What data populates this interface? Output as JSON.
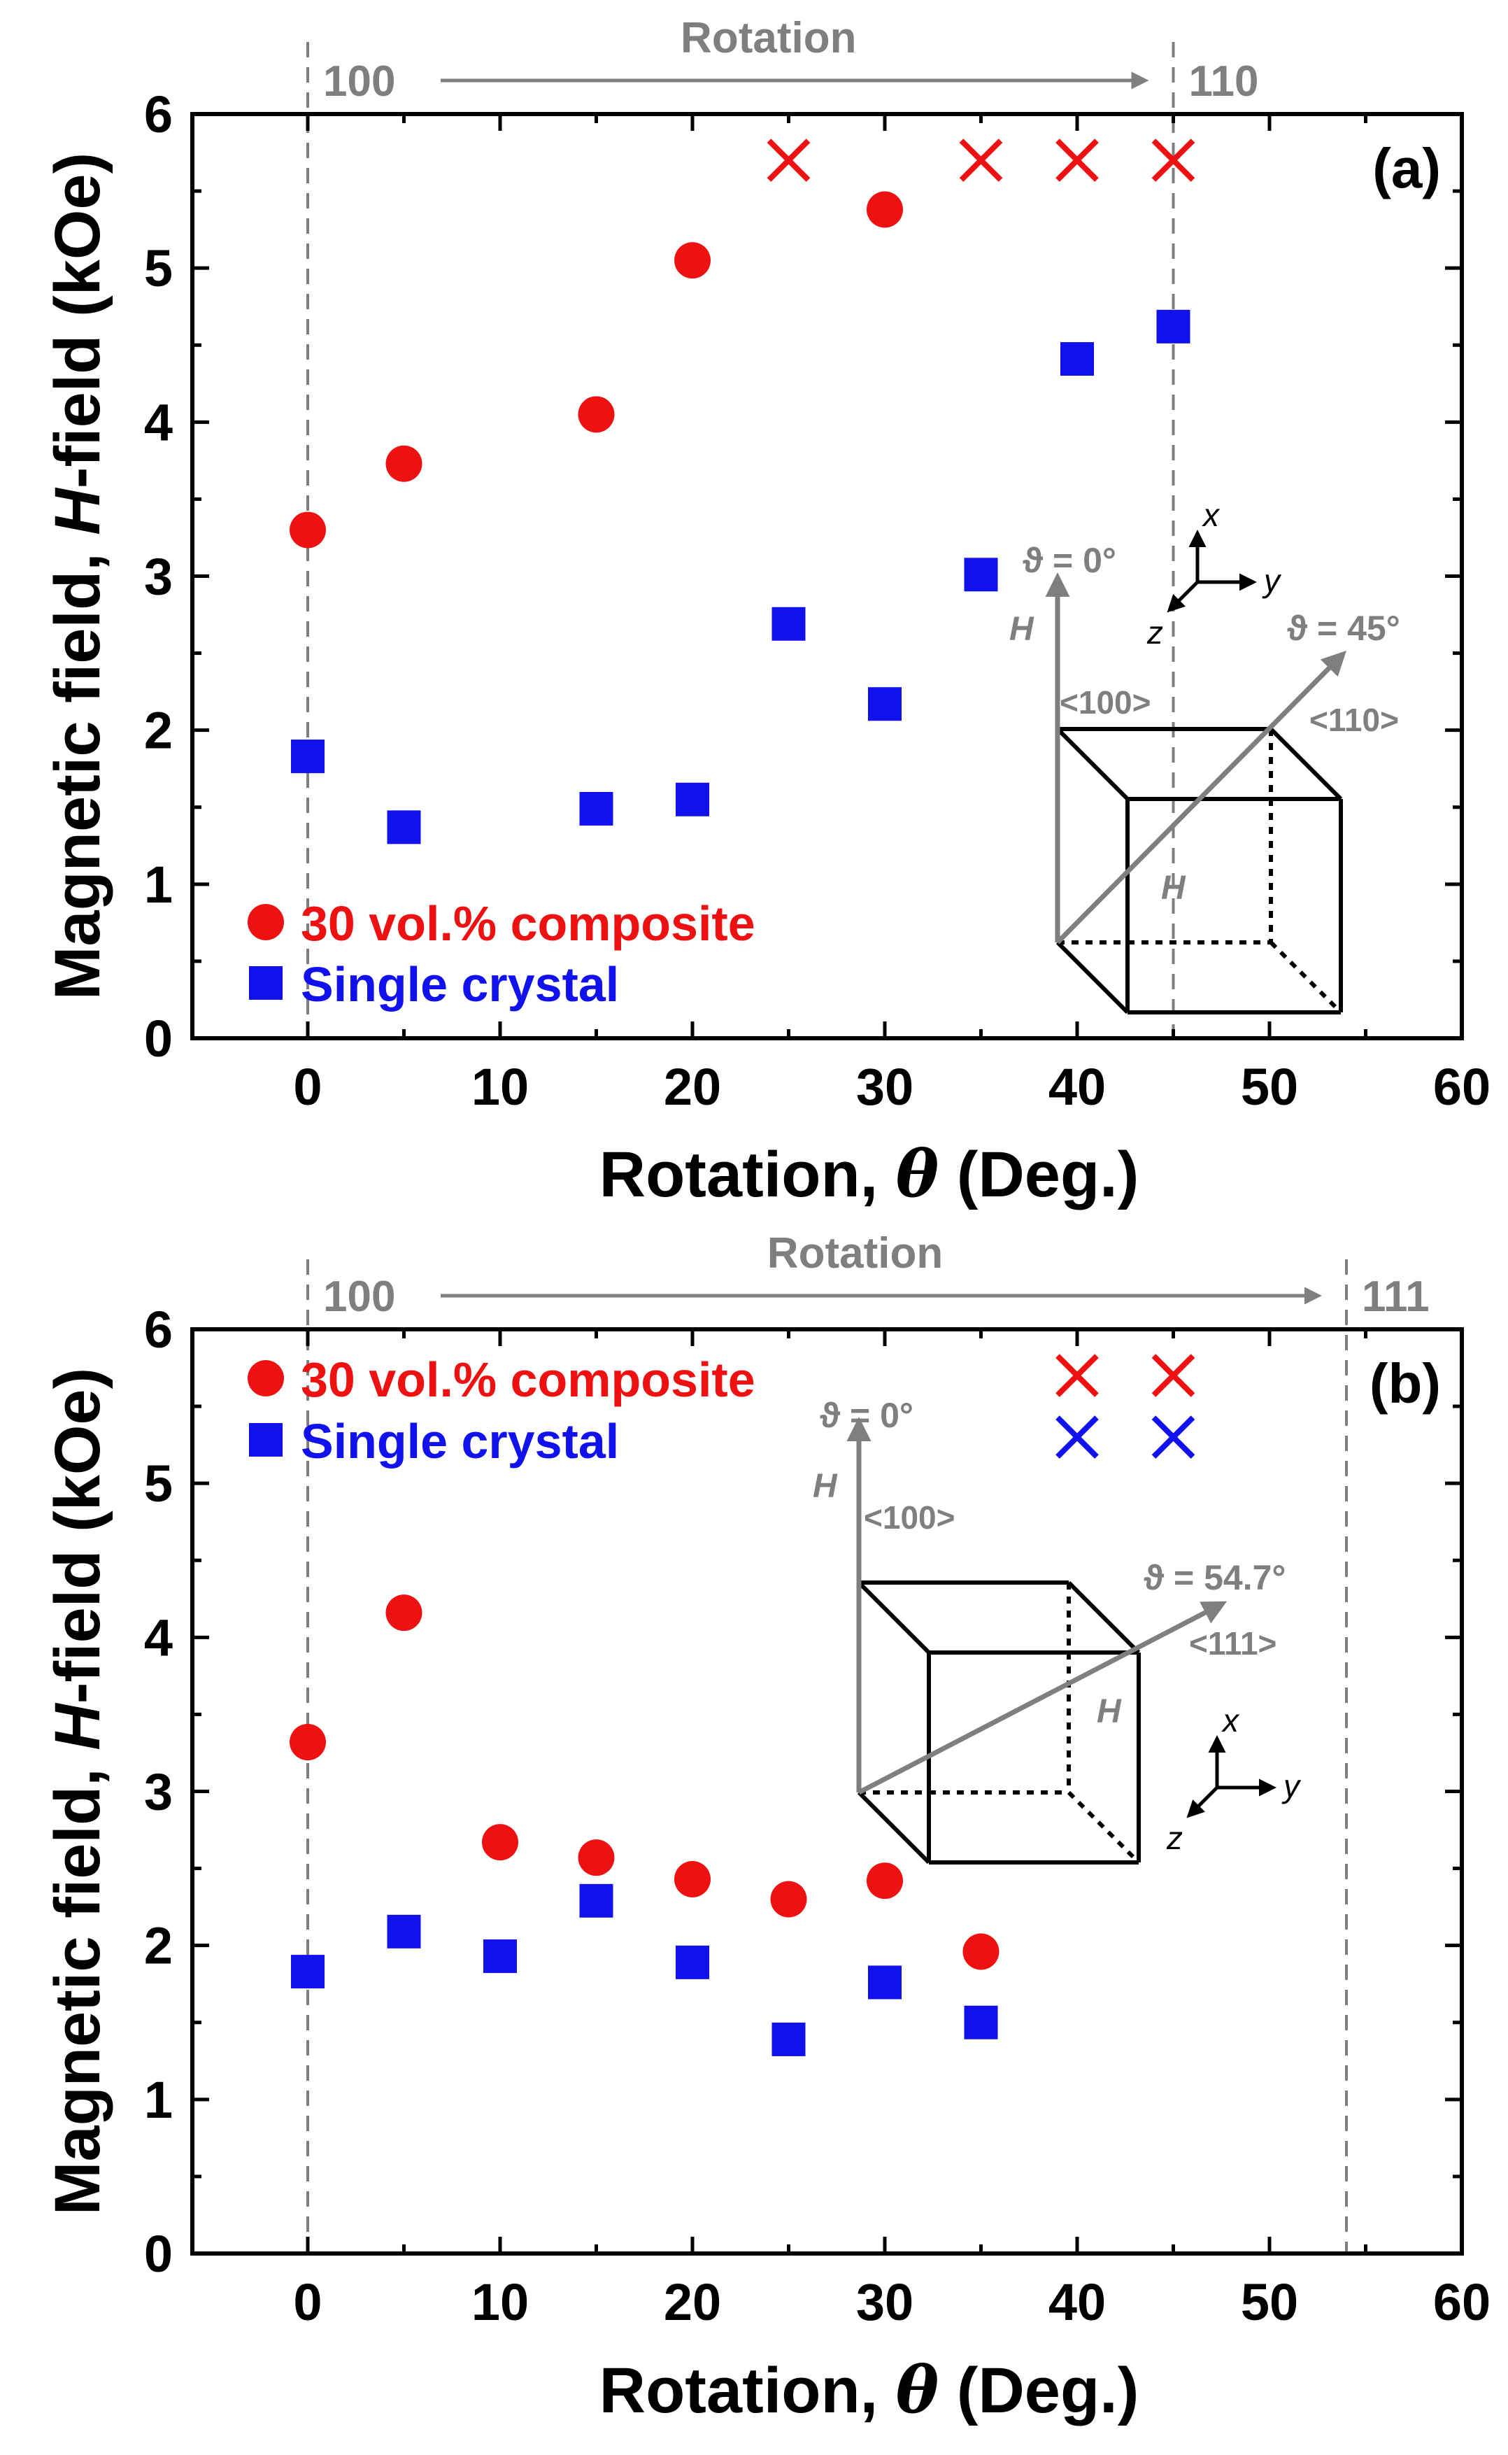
{
  "colors": {
    "composite": "#ee1111",
    "single": "#1111ee",
    "annotation": "#7f7f7f",
    "axis": "#000000"
  },
  "chart_data": [
    {
      "type": "scatter",
      "panel_label": "(a)",
      "title": "",
      "xlabel": {
        "prefix": "Rotation, ",
        "symbol": "θ",
        "suffix": " (Deg.)"
      },
      "ylabel": {
        "prefix": "Magnetic field, ",
        "italic": "H",
        "suffix": "-field (kOe)"
      },
      "xlim": [
        -6,
        60
      ],
      "ylim": [
        0,
        6
      ],
      "x_ticks": [
        0,
        10,
        20,
        30,
        40,
        50,
        60
      ],
      "y_ticks": [
        0,
        1,
        2,
        3,
        4,
        5,
        6
      ],
      "x_tick_labels": [
        "0",
        "10",
        "20",
        "30",
        "40",
        "50",
        "60"
      ],
      "y_tick_labels": [
        "0",
        "1",
        "2",
        "3",
        "4",
        "5",
        "6"
      ],
      "series": [
        {
          "name": "30 vol.% composite",
          "marker": "circle",
          "color": "#ee1111",
          "x": [
            0,
            5,
            15,
            20,
            30
          ],
          "y": [
            3.3,
            3.73,
            4.05,
            5.05,
            5.38
          ]
        },
        {
          "name": "Single crystal",
          "marker": "square",
          "color": "#1111ee",
          "x": [
            0,
            5,
            15,
            20,
            25,
            30,
            35,
            40,
            45
          ],
          "y": [
            1.83,
            1.37,
            1.49,
            1.55,
            2.69,
            2.17,
            3.01,
            4.41,
            4.62
          ]
        }
      ],
      "no_switch_markers": [
        {
          "x": 25,
          "y": 5.7,
          "color": "#ee1111"
        },
        {
          "x": 35,
          "y": 5.7,
          "color": "#ee1111"
        },
        {
          "x": 40,
          "y": 5.7,
          "color": "#ee1111"
        },
        {
          "x": 45,
          "y": 5.7,
          "color": "#ee1111"
        }
      ],
      "legend_position": "bottom-left",
      "rotation": {
        "label": "Rotation",
        "start_label": "100",
        "end_label": "110",
        "start_x": 0,
        "end_x": 45
      },
      "inset": {
        "theta0": "ϑ = 0°",
        "theta1": "ϑ = 45°",
        "dir0": "<100>",
        "dir1": "<110>",
        "h_vertical": "H",
        "h_diagonal": "H",
        "axis_x": "x",
        "axis_y": "y",
        "axis_z": "z"
      }
    },
    {
      "type": "scatter",
      "panel_label": "(b)",
      "title": "",
      "xlabel": {
        "prefix": "Rotation, ",
        "symbol": "θ",
        "suffix": " (Deg.)"
      },
      "ylabel": {
        "prefix": "Magnetic field, ",
        "italic": "H",
        "suffix": "-field (kOe)"
      },
      "xlim": [
        -6,
        60
      ],
      "ylim": [
        0,
        6
      ],
      "x_ticks": [
        0,
        10,
        20,
        30,
        40,
        50,
        60
      ],
      "y_ticks": [
        0,
        1,
        2,
        3,
        4,
        5,
        6
      ],
      "x_tick_labels": [
        "0",
        "10",
        "20",
        "30",
        "40",
        "50",
        "60"
      ],
      "y_tick_labels": [
        "0",
        "1",
        "2",
        "3",
        "4",
        "5",
        "6"
      ],
      "series": [
        {
          "name": "30 vol.% composite",
          "marker": "circle",
          "color": "#ee1111",
          "x": [
            0,
            5,
            10,
            15,
            20,
            25,
            30,
            35
          ],
          "y": [
            3.32,
            4.16,
            2.67,
            2.57,
            2.43,
            2.3,
            2.42,
            1.96
          ]
        },
        {
          "name": "Single crystal",
          "marker": "square",
          "color": "#1111ee",
          "x": [
            0,
            5,
            10,
            15,
            20,
            25,
            30,
            35
          ],
          "y": [
            1.83,
            2.09,
            1.93,
            2.29,
            1.89,
            1.39,
            1.76,
            1.5
          ]
        }
      ],
      "no_switch_markers": [
        {
          "x": 40,
          "y": 5.7,
          "color": "#ee1111"
        },
        {
          "x": 45,
          "y": 5.7,
          "color": "#ee1111"
        },
        {
          "x": 40,
          "y": 5.3,
          "color": "#1111ee"
        },
        {
          "x": 45,
          "y": 5.3,
          "color": "#1111ee"
        }
      ],
      "legend_position": "top-left",
      "rotation": {
        "label": "Rotation",
        "start_label": "100",
        "end_label": "111",
        "start_x": 0,
        "end_x": 54
      },
      "inset": {
        "theta0": "ϑ = 0°",
        "theta1": "ϑ = 54.7°",
        "dir0": "<100>",
        "dir1": "<111>",
        "h_vertical": "H",
        "h_diagonal": "H",
        "axis_x": "x",
        "axis_y": "y",
        "axis_z": "z"
      }
    }
  ]
}
